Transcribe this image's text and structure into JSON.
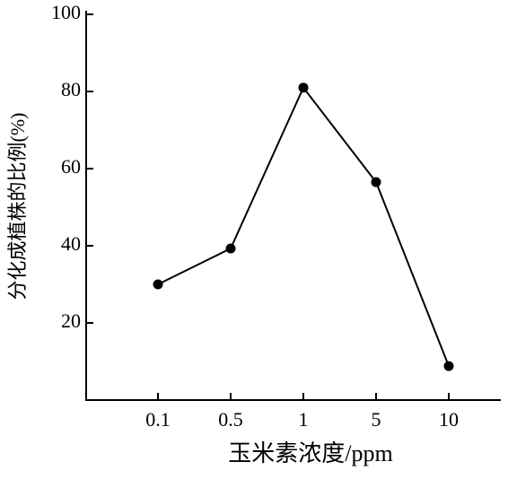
{
  "chart_data": {
    "type": "line",
    "x_label": "玉米素浓度/ppm",
    "y_label": "分化成植株的比例(%)",
    "categories": [
      "0.1",
      "0.5",
      "1",
      "5",
      "10"
    ],
    "values": [
      30,
      39.3,
      81,
      56.5,
      8.8
    ],
    "color": "#000000",
    "ylim": [
      0,
      100
    ],
    "yticks": [
      20,
      40,
      60,
      80,
      100
    ]
  }
}
